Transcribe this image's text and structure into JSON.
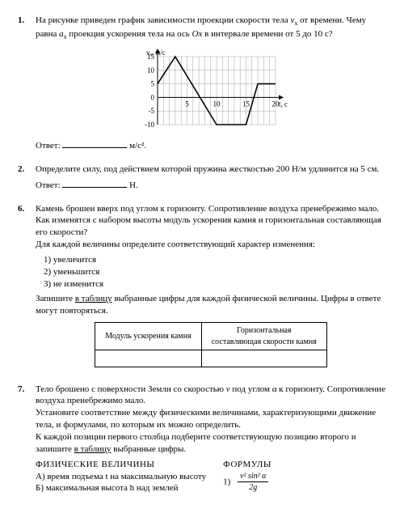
{
  "p1": {
    "num": "1.",
    "text_a": "На рисунке приведен график зависимости проекции скорости тела ",
    "text_b": " от времени. Чему равна ",
    "text_c": " проекция ускорения тела на ось ",
    "text_d": " в интервале времени от 5 до 10 с?",
    "v_sym": "v",
    "v_sub": "x",
    "a_sym": "a",
    "a_sub": "x",
    "ox": "Ox",
    "answer_label": "Ответ:",
    "answer_unit": "м/с²",
    "chart": {
      "y_label": "vₓ, м/с",
      "x_label": "t, с",
      "x_ticks": [
        0,
        5,
        10,
        15,
        20
      ],
      "y_ticks": [
        -10,
        -5,
        0,
        5,
        10,
        15
      ],
      "line_color": "#000000",
      "grid_color": "#888888",
      "bg": "#ffffff",
      "points": [
        [
          0,
          5
        ],
        [
          3,
          15
        ],
        [
          10,
          -10
        ],
        [
          15,
          -10
        ],
        [
          17,
          5
        ],
        [
          20,
          5
        ]
      ],
      "xlim": [
        0,
        20
      ],
      "ylim": [
        -10,
        15
      ],
      "width": 170,
      "height": 100
    }
  },
  "p2": {
    "num": "2.",
    "text": "Определите силу, под действием которой пружина жесткостью 200 Н/м удлинится на 5 см.",
    "answer_label": "Ответ:",
    "answer_unit": "Н."
  },
  "p6": {
    "num": "6.",
    "para1": "Камень брошен вверх под углом к горизонту. Сопротивление воздуха пренебрежимо мало. Как изменятся с набором высоты модуль ускорения камня и горизонтальная составляющая его скорости?",
    "para2": "Для каждой величины определите соответствующий характер изменения:",
    "opt1": "1) увеличится",
    "opt2": "2) уменьшится",
    "opt3": "3) не изменится",
    "para3a": "Запишите ",
    "para3b": "в таблицу",
    "para3c": " выбранные цифры для каждой физической величины. Цифры в ответе могут повторяться.",
    "th1": "Модуль ускорения камня",
    "th2a": "Горизонтальная",
    "th2b": "составляющая скорости камня"
  },
  "p7": {
    "num": "7.",
    "para1a": "Тело брошено с поверхности Земли со скоростью ",
    "para1b": " под углом α к горизонту. Сопротивление воздуха пренебрежимо мало.",
    "v_sym": "v",
    "para2": "Установите соответствие между физическими величинами, характеризующими движение тела, и формулами, по которым их можно определить.",
    "para3a": "К каждой позиции первого столбца подберите соответствующую позицию второго и запишите ",
    "para3b": "в таблицу",
    "para3c": " выбранные цифры.",
    "left_title": "ФИЗИЧЕСКИЕ ВЕЛИЧИНЫ",
    "right_title": "ФОРМУЛЫ",
    "A": "А) время подъема t на максимальную высоту",
    "B": "Б) максимальная высота h над землей",
    "f1_num": "1)",
    "f1_top": "v² sin² α",
    "f1_bot": "2g"
  }
}
